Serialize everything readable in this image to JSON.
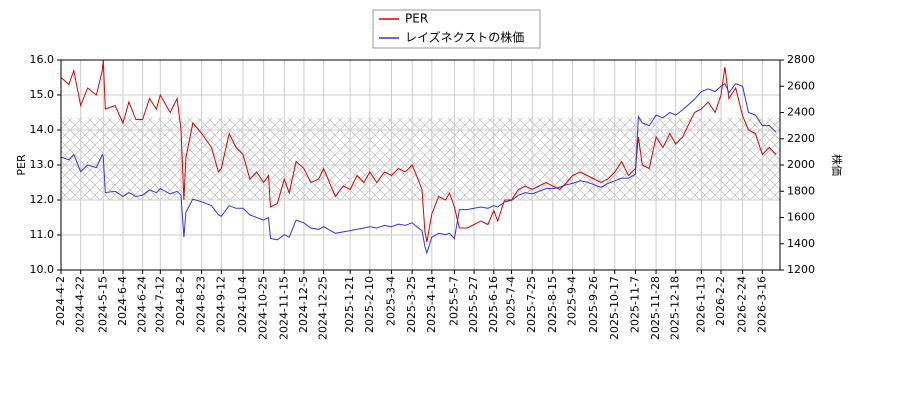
{
  "chart_data": {
    "type": "line",
    "ylabel": "PER",
    "y2label": "株価",
    "x": [
      "2024-4-2",
      "2024-4-10",
      "2024-4-15",
      "2024-4-22",
      "2024-4-29",
      "2024-5-8",
      "2024-5-14",
      "2024-5-15",
      "2024-5-17",
      "2024-5-27",
      "2024-6-4",
      "2024-6-10",
      "2024-6-17",
      "2024-6-24",
      "2024-7-1",
      "2024-7-8",
      "2024-7-12",
      "2024-7-22",
      "2024-7-29",
      "2024-8-2",
      "2024-8-5",
      "2024-8-7",
      "2024-8-14",
      "2024-8-23",
      "2024-9-2",
      "2024-9-9",
      "2024-9-12",
      "2024-9-20",
      "2024-9-27",
      "2024-10-4",
      "2024-10-11",
      "2024-10-18",
      "2024-10-25",
      "2024-10-30",
      "2024-11-1",
      "2024-11-8",
      "2024-11-15",
      "2024-11-20",
      "2024-11-27",
      "2024-12-5",
      "2024-12-12",
      "2024-12-20",
      "2024-12-25",
      "2025-1-6",
      "2025-1-14",
      "2025-1-21",
      "2025-1-28",
      "2025-2-4",
      "2025-2-10",
      "2025-2-17",
      "2025-2-25",
      "2025-3-4",
      "2025-3-11",
      "2025-3-18",
      "2025-3-25",
      "2025-3-28",
      "2025-4-4",
      "2025-4-7",
      "2025-4-9",
      "2025-4-14",
      "2025-4-21",
      "2025-4-28",
      "2025-5-2",
      "2025-5-7",
      "2025-5-12",
      "2025-5-20",
      "2025-5-27",
      "2025-6-3",
      "2025-6-10",
      "2025-6-16",
      "2025-6-20",
      "2025-6-27",
      "2025-7-4",
      "2025-7-11",
      "2025-7-18",
      "2025-7-25",
      "2025-8-1",
      "2025-8-8",
      "2025-8-15",
      "2025-8-22",
      "2025-8-29",
      "2025-9-4",
      "2025-9-12",
      "2025-9-19",
      "2025-9-26",
      "2025-10-3",
      "2025-10-10",
      "2025-10-17",
      "2025-10-24",
      "2025-10-31",
      "2025-11-7",
      "2025-11-10",
      "2025-11-14",
      "2025-11-21",
      "2025-11-28",
      "2025-12-5",
      "2025-12-12",
      "2025-12-18",
      "2025-12-25",
      "2026-1-6",
      "2026-1-13",
      "2026-1-20",
      "2026-1-27",
      "2026-2-2",
      "2026-2-6",
      "2026-2-10",
      "2026-2-17",
      "2026-2-24",
      "2026-3-2",
      "2026-3-9",
      "2026-3-16",
      "2026-3-23",
      "2026-3-30"
    ],
    "series": [
      {
        "name": "PER",
        "color": "#dd0000",
        "axis": "y",
        "values": [
          15.5,
          15.3,
          15.7,
          14.7,
          15.2,
          15.0,
          15.7,
          16.0,
          14.6,
          14.7,
          14.2,
          14.8,
          14.3,
          14.3,
          14.9,
          14.6,
          15.0,
          14.5,
          14.9,
          14.0,
          12.0,
          13.2,
          14.2,
          13.9,
          13.5,
          12.8,
          12.9,
          13.9,
          13.5,
          13.3,
          12.6,
          12.8,
          12.5,
          12.7,
          11.8,
          11.9,
          12.6,
          12.2,
          13.1,
          12.9,
          12.5,
          12.6,
          12.9,
          12.1,
          12.4,
          12.3,
          12.7,
          12.5,
          12.8,
          12.5,
          12.8,
          12.7,
          12.9,
          12.8,
          13.0,
          12.8,
          12.3,
          11.1,
          10.8,
          11.6,
          12.1,
          12.0,
          12.2,
          11.8,
          11.2,
          11.2,
          11.3,
          11.4,
          11.3,
          11.7,
          11.4,
          12.0,
          12.0,
          12.3,
          12.4,
          12.3,
          12.4,
          12.5,
          12.4,
          12.3,
          12.5,
          12.7,
          12.8,
          12.7,
          12.6,
          12.5,
          12.6,
          12.8,
          13.1,
          12.7,
          12.9,
          13.8,
          13.0,
          12.9,
          13.8,
          13.5,
          13.9,
          13.6,
          13.8,
          14.5,
          14.6,
          14.8,
          14.5,
          15.0,
          15.8,
          14.9,
          15.2,
          14.4,
          14.0,
          13.9,
          13.3,
          13.5,
          13.3
        ]
      },
      {
        "name": "レイズネクストの株価",
        "color": "#3333dd",
        "axis": "y2",
        "values": [
          2060,
          2040,
          2080,
          1950,
          2000,
          1980,
          2080,
          2060,
          1790,
          1800,
          1760,
          1790,
          1760,
          1770,
          1810,
          1790,
          1820,
          1780,
          1800,
          1770,
          1450,
          1640,
          1740,
          1720,
          1690,
          1620,
          1610,
          1690,
          1670,
          1670,
          1620,
          1600,
          1580,
          1600,
          1440,
          1430,
          1470,
          1450,
          1580,
          1560,
          1520,
          1510,
          1530,
          1480,
          1490,
          1500,
          1510,
          1520,
          1530,
          1520,
          1540,
          1530,
          1550,
          1540,
          1560,
          1540,
          1500,
          1380,
          1330,
          1450,
          1480,
          1470,
          1480,
          1440,
          1660,
          1660,
          1670,
          1680,
          1670,
          1690,
          1680,
          1720,
          1730,
          1770,
          1790,
          1780,
          1800,
          1820,
          1820,
          1830,
          1850,
          1860,
          1880,
          1870,
          1850,
          1830,
          1860,
          1880,
          1900,
          1900,
          1930,
          2370,
          2320,
          2300,
          2380,
          2360,
          2400,
          2380,
          2420,
          2500,
          2560,
          2580,
          2560,
          2600,
          2620,
          2550,
          2620,
          2600,
          2400,
          2380,
          2300,
          2300,
          2250
        ]
      }
    ],
    "xlim": [
      "2024-4-2",
      "2026-4-3"
    ],
    "xticks": [
      "2024-4-2",
      "2024-4-22",
      "2024-5-15",
      "2024-6-4",
      "2024-6-24",
      "2024-7-12",
      "2024-8-2",
      "2024-8-23",
      "2024-9-12",
      "2024-10-4",
      "2024-10-25",
      "2024-11-15",
      "2024-12-5",
      "2024-12-25",
      "2025-1-21",
      "2025-2-10",
      "2025-3-4",
      "2025-3-25",
      "2025-4-14",
      "2025-5-7",
      "2025-5-27",
      "2025-6-16",
      "2025-7-4",
      "2025-7-25",
      "2025-8-15",
      "2025-9-4",
      "2025-9-26",
      "2025-10-17",
      "2025-11-7",
      "2025-11-28",
      "2025-12-18",
      "2026-1-13",
      "2026-2-2",
      "2026-2-24",
      "2026-3-16"
    ],
    "ylim": [
      10,
      16
    ],
    "yticks": [
      {
        "value": 10,
        "label": "10.0"
      },
      {
        "value": 11,
        "label": "11.0"
      },
      {
        "value": 12,
        "label": "12.0"
      },
      {
        "value": 13,
        "label": "13.0"
      },
      {
        "value": 14,
        "label": "14.0"
      },
      {
        "value": 15,
        "label": "15.0"
      },
      {
        "value": 16,
        "label": "16.0"
      }
    ],
    "y2lim": [
      1200,
      2800
    ],
    "y2ticks": [
      1200,
      1400,
      1600,
      1800,
      2000,
      2200,
      2400,
      2600,
      2800
    ],
    "shaded_range": [
      12.0,
      14.35
    ],
    "grid": true
  }
}
